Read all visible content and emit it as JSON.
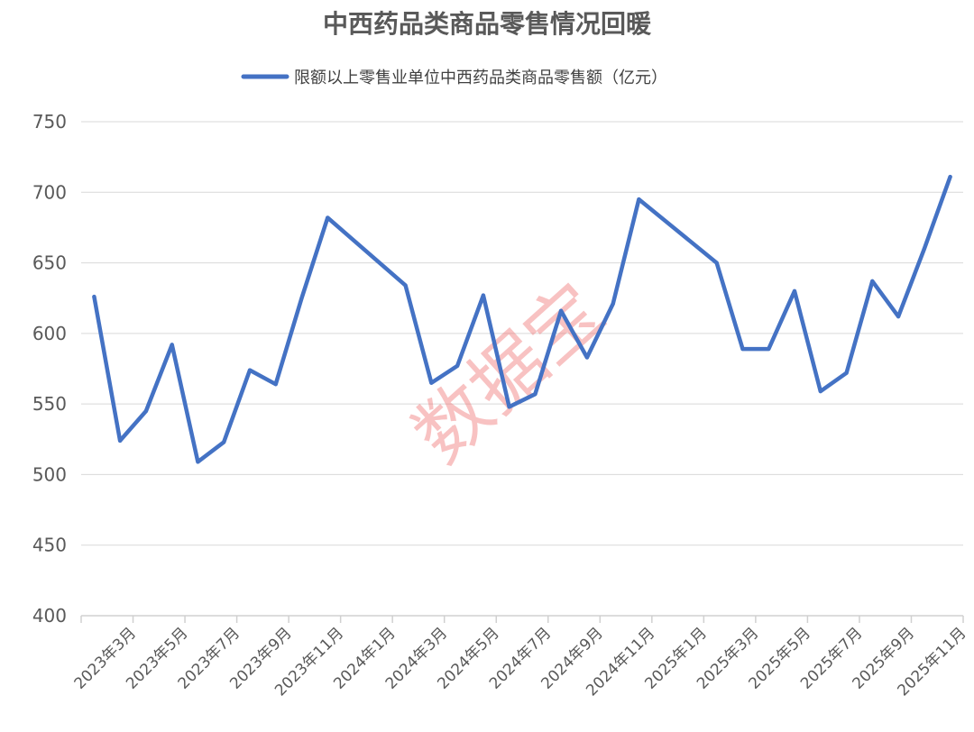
{
  "chart_data": {
    "type": "line",
    "title": "中西药品类商品零售情况回暖",
    "legend_position": "top",
    "grid": true,
    "ylim": [
      400,
      750
    ],
    "yticks": [
      400,
      450,
      500,
      550,
      600,
      650,
      700,
      750
    ],
    "x_tick_labels": [
      "2023年3月",
      "2023年5月",
      "2023年7月",
      "2023年9月",
      "2023年11月",
      "2024年1月",
      "2024年3月",
      "2024年5月",
      "2024年7月",
      "2024年9月",
      "2024年11月",
      "2025年1月",
      "2025年3月",
      "2025年5月",
      "2025年7月",
      "2025年9月",
      "2025年11月"
    ],
    "series": [
      {
        "name": "限额以上零售业单位中西药品类商品零售额（亿元）",
        "color": "#4472c4",
        "values": [
          {
            "x": "2023年3月",
            "y": 626
          },
          {
            "x": "2023年4月",
            "y": 524
          },
          {
            "x": "2023年5月",
            "y": 545
          },
          {
            "x": "2023年6月",
            "y": 592
          },
          {
            "x": "2023年7月",
            "y": 509
          },
          {
            "x": "2023年8月",
            "y": 523
          },
          {
            "x": "2023年9月",
            "y": 574
          },
          {
            "x": "2023年10月",
            "y": 564
          },
          {
            "x": "2023年11月",
            "y": 625
          },
          {
            "x": "2023年12月",
            "y": 682
          },
          {
            "x": "2024年3月",
            "y": 634
          },
          {
            "x": "2024年4月",
            "y": 565
          },
          {
            "x": "2024年5月",
            "y": 577
          },
          {
            "x": "2024年6月",
            "y": 627
          },
          {
            "x": "2024年7月",
            "y": 548
          },
          {
            "x": "2024年8月",
            "y": 557
          },
          {
            "x": "2024年9月",
            "y": 616
          },
          {
            "x": "2024年10月",
            "y": 583
          },
          {
            "x": "2024年11月",
            "y": 621
          },
          {
            "x": "2024年12月",
            "y": 695
          },
          {
            "x": "2025年3月",
            "y": 650
          },
          {
            "x": "2025年4月",
            "y": 589
          },
          {
            "x": "2025年5月",
            "y": 589
          },
          {
            "x": "2025年6月",
            "y": 630
          },
          {
            "x": "2025年7月",
            "y": 559
          },
          {
            "x": "2025年8月",
            "y": 572
          },
          {
            "x": "2025年9月",
            "y": 637
          },
          {
            "x": "2025年10月",
            "y": 612
          },
          {
            "x": "2025年11月",
            "y": 660
          },
          {
            "x": "2025年12月",
            "y": 711
          }
        ]
      }
    ],
    "watermark": "数据宝"
  }
}
